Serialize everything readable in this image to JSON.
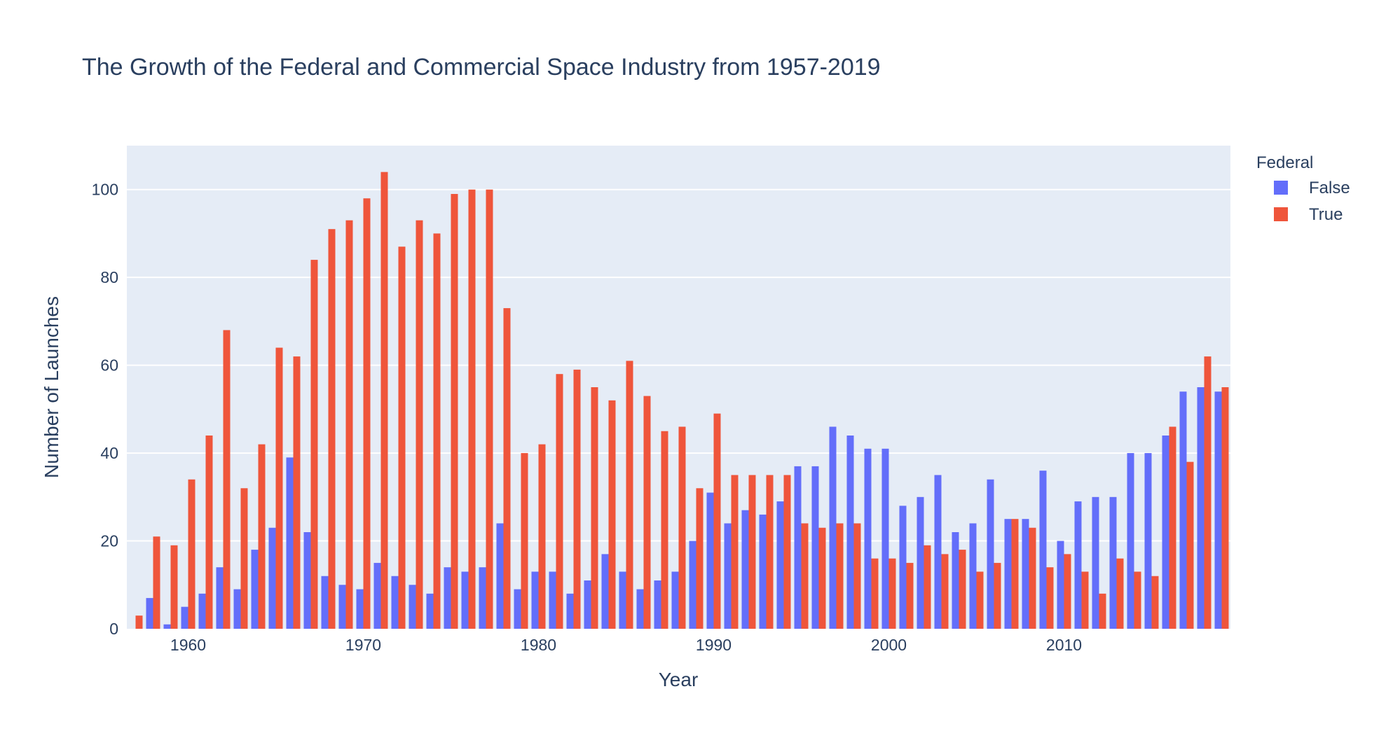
{
  "chart_data": {
    "type": "bar",
    "title": "The Growth of the Federal and Commercial Space Industry from 1957-2019",
    "xlabel": "Year",
    "ylabel": "Number of Launches",
    "xlim": [
      1956.5,
      2019.5
    ],
    "ylim": [
      0,
      110
    ],
    "x_ticks": [
      "1960",
      "1970",
      "1980",
      "1990",
      "2000",
      "2010"
    ],
    "y_ticks": [
      "0",
      "20",
      "40",
      "60",
      "80",
      "100"
    ],
    "grid": true,
    "legend": {
      "title": "Federal",
      "placement": "top-right"
    },
    "x": [
      1957,
      1958,
      1959,
      1960,
      1961,
      1962,
      1963,
      1964,
      1965,
      1966,
      1967,
      1968,
      1969,
      1970,
      1971,
      1972,
      1973,
      1974,
      1975,
      1976,
      1977,
      1978,
      1979,
      1980,
      1981,
      1982,
      1983,
      1984,
      1985,
      1986,
      1987,
      1988,
      1989,
      1990,
      1991,
      1992,
      1993,
      1994,
      1995,
      1996,
      1997,
      1998,
      1999,
      2000,
      2001,
      2002,
      2003,
      2004,
      2005,
      2006,
      2007,
      2008,
      2009,
      2010,
      2011,
      2012,
      2013,
      2014,
      2015,
      2016,
      2017,
      2018,
      2019
    ],
    "series": [
      {
        "name": "False",
        "color": "#636efa",
        "values": [
          0,
          7,
          1,
          5,
          8,
          14,
          9,
          18,
          23,
          39,
          22,
          12,
          10,
          9,
          15,
          12,
          10,
          8,
          14,
          13,
          14,
          24,
          9,
          13,
          13,
          8,
          11,
          17,
          13,
          9,
          11,
          13,
          20,
          31,
          24,
          27,
          26,
          29,
          37,
          37,
          46,
          44,
          41,
          41,
          28,
          30,
          35,
          22,
          24,
          34,
          25,
          25,
          36,
          20,
          29,
          30,
          30,
          40,
          40,
          44,
          54,
          55,
          54
        ]
      },
      {
        "name": "True",
        "color": "#ef553b",
        "values": [
          3,
          21,
          19,
          34,
          44,
          68,
          32,
          42,
          64,
          62,
          84,
          91,
          93,
          98,
          104,
          87,
          93,
          90,
          99,
          100,
          100,
          73,
          40,
          42,
          58,
          59,
          55,
          52,
          61,
          53,
          45,
          46,
          32,
          49,
          35,
          35,
          35,
          35,
          24,
          23,
          24,
          24,
          16,
          16,
          15,
          19,
          17,
          18,
          13,
          15,
          25,
          23,
          14,
          17,
          13,
          8,
          16,
          13,
          12,
          46,
          38,
          62,
          55
        ]
      }
    ]
  }
}
